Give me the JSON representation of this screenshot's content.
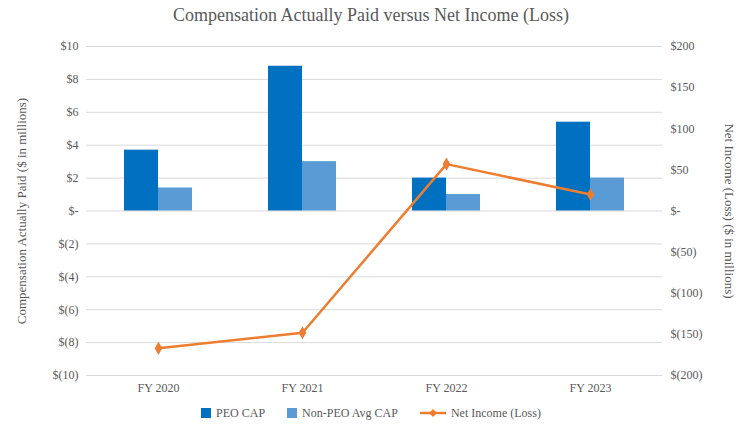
{
  "chart_data": {
    "type": "bar",
    "title": "Compensation Actually Paid versus Net Income (Loss)",
    "categories": [
      "FY 2020",
      "FY 2021",
      "FY 2022",
      "FY 2023"
    ],
    "ylabel": "Compensation Actually Paid ($ in millions)",
    "y2label": "Net Income (Loss) ($ in millions)",
    "series": [
      {
        "name": "PEO CAP",
        "type": "bar",
        "color": "#0070C0",
        "values": [
          3.7,
          8.8,
          2.0,
          5.4
        ]
      },
      {
        "name": "Non-PEO Avg CAP",
        "type": "bar",
        "color": "#5B9BD5",
        "values": [
          1.4,
          3.0,
          1.0,
          2.0
        ]
      },
      {
        "name": "Net Income (Loss)",
        "type": "line",
        "axis": "y2",
        "color": "#ED7D31",
        "marker": "diamond",
        "values": [
          -167,
          -148,
          57,
          20
        ]
      }
    ],
    "ylim": [
      -10,
      10
    ],
    "yticks": [
      {
        "value": 10,
        "label": "$10"
      },
      {
        "value": 8,
        "label": "$8"
      },
      {
        "value": 6,
        "label": "$6"
      },
      {
        "value": 4,
        "label": "$4"
      },
      {
        "value": 2,
        "label": "$2"
      },
      {
        "value": 0,
        "label": "$-"
      },
      {
        "value": -2,
        "label": "$(2)"
      },
      {
        "value": -4,
        "label": "$(4)"
      },
      {
        "value": -6,
        "label": "$(6)"
      },
      {
        "value": -8,
        "label": "$(8)"
      },
      {
        "value": -10,
        "label": "$(10)"
      }
    ],
    "y2lim": [
      -200,
      200
    ],
    "y2ticks": [
      {
        "value": 200,
        "label": "$200"
      },
      {
        "value": 150,
        "label": "$150"
      },
      {
        "value": 100,
        "label": "$100"
      },
      {
        "value": 50,
        "label": "$50"
      },
      {
        "value": 0,
        "label": "$-"
      },
      {
        "value": -50,
        "label": "$(50)"
      },
      {
        "value": -100,
        "label": "$(100)"
      },
      {
        "value": -150,
        "label": "$(150)"
      },
      {
        "value": -200,
        "label": "$(200)"
      }
    ],
    "grid": true,
    "legend": "bottom"
  }
}
